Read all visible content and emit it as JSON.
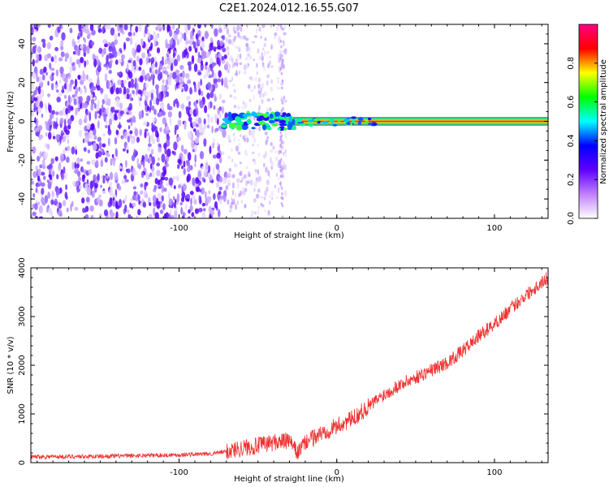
{
  "title": "C2E1.2024.012.16.55.G07",
  "chart_data": [
    {
      "type": "heatmap",
      "title": "C2E1.2024.012.16.55.G07",
      "xlabel": "Height of straight line (km)",
      "ylabel": "Frequency (Hz)",
      "xlim": [
        -194,
        134
      ],
      "ylim": [
        -50,
        50
      ],
      "x_ticks": [
        -100,
        0,
        100
      ],
      "y_ticks": [
        -40,
        -20,
        0,
        20,
        40
      ],
      "colorbar": {
        "label": "Normalized spectral amplitude",
        "range": [
          0,
          1
        ],
        "ticks": [
          0.0,
          0.2,
          0.4,
          0.6,
          0.8
        ],
        "colormap": [
          "#ffffff",
          "#c080ff",
          "#6000ff",
          "#0000ff",
          "#00ffff",
          "#00ff00",
          "#ffff00",
          "#ff0000",
          "#ff0080"
        ]
      },
      "regions": [
        {
          "x_range": [
            -194,
            -70
          ],
          "description_level": 0.15
        },
        {
          "x_range": [
            -70,
            -35
          ],
          "signal_freq": 0,
          "level": 0.35
        },
        {
          "x_range": [
            -35,
            134
          ],
          "signal_freq": 0,
          "level": 0.85
        }
      ]
    },
    {
      "type": "line",
      "xlabel": "Height of straight line (km)",
      "ylabel": "SNR (10 * v/v)",
      "xlim": [
        -194,
        134
      ],
      "ylim": [
        0,
        4000
      ],
      "x_ticks": [
        -100,
        0,
        100
      ],
      "y_ticks": [
        0,
        1000,
        2000,
        3000,
        4000
      ],
      "color": "#f03030",
      "series": [
        {
          "x": [
            -194,
            -150,
            -100,
            -80,
            -70,
            -60,
            -50,
            -40,
            -30,
            -25,
            -20,
            -10,
            0,
            10,
            20,
            30,
            40,
            50,
            60,
            70,
            80,
            90,
            100,
            110,
            120,
            134
          ],
          "y": [
            120,
            130,
            160,
            180,
            230,
            300,
            350,
            420,
            450,
            200,
            420,
            600,
            750,
            900,
            1150,
            1400,
            1600,
            1750,
            1900,
            2050,
            2300,
            2600,
            2850,
            3150,
            3450,
            3800
          ]
        }
      ]
    }
  ]
}
